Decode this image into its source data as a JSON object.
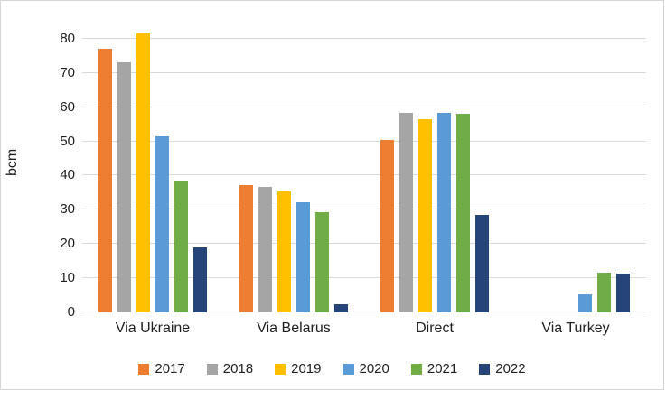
{
  "chart_data": {
    "type": "bar",
    "title": "",
    "xlabel": "",
    "ylabel": "bcm",
    "ylim": [
      0,
      85
    ],
    "yticks": [
      0,
      10,
      20,
      30,
      40,
      50,
      60,
      70,
      80
    ],
    "grid": true,
    "legend_position": "bottom",
    "categories": [
      "Via Ukraine",
      "Via Belarus",
      "Direct",
      "Via Turkey"
    ],
    "series": [
      {
        "name": "2017",
        "color": "#ED7D31",
        "values": [
          77.0,
          37.3,
          50.5,
          0
        ]
      },
      {
        "name": "2018",
        "color": "#A5A5A5",
        "values": [
          73.0,
          36.7,
          58.3,
          0
        ]
      },
      {
        "name": "2019",
        "color": "#FFC000",
        "values": [
          81.5,
          35.5,
          56.4,
          0
        ]
      },
      {
        "name": "2020",
        "color": "#5B9BD5",
        "values": [
          51.5,
          32.3,
          58.3,
          5.3
        ]
      },
      {
        "name": "2021",
        "color": "#70AD47",
        "values": [
          38.5,
          29.2,
          58.0,
          11.6
        ]
      },
      {
        "name": "2022",
        "color": "#264478",
        "values": [
          19.0,
          2.4,
          28.5,
          11.4
        ]
      }
    ],
    "colors": {
      "gridline": "#D9D9D9",
      "axis_text": "#1F1F1F",
      "frame_border": "#D6D6D6"
    }
  }
}
